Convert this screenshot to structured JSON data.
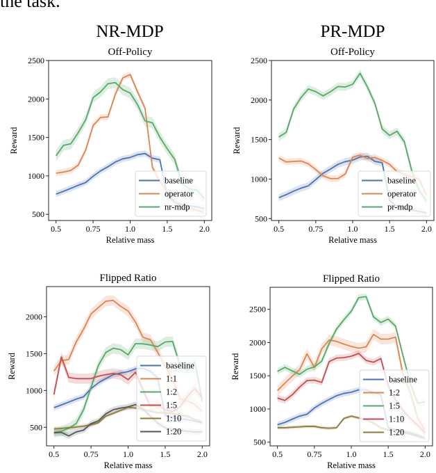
{
  "page": {
    "lead_text": "the task.",
    "column_titles": [
      "NR-MDP",
      "PR-MDP"
    ]
  },
  "colors": {
    "baseline": "#4c72b0",
    "orange": "#dd8452",
    "green": "#55a868",
    "red": "#c44e52",
    "olive": "#8c7a3a",
    "gray": "#555555"
  },
  "chart_data": [
    {
      "type": "line",
      "panel": "top-left",
      "column": "NR-MDP",
      "title": "Off-Policy",
      "xlabel": "Relative mass",
      "ylabel": "Reward",
      "x": [
        0.5,
        0.55,
        0.6,
        0.65,
        0.7,
        0.75,
        0.8,
        0.85,
        0.9,
        0.95,
        1.0,
        1.1,
        1.2,
        1.3,
        1.4,
        1.5,
        1.6,
        1.7,
        1.8,
        1.9,
        2.0
      ],
      "x_scale": "categorical-index",
      "xticks": [
        "0.5",
        "0.75",
        "1.0",
        "1.5",
        "2.0"
      ],
      "xtick_indices": [
        0,
        5,
        10,
        15,
        20
      ],
      "yticks": [
        500,
        1000,
        1500,
        2000,
        2500
      ],
      "ylim": [
        420,
        2500
      ],
      "legend_position": "lower-right",
      "series": [
        {
          "name": "baseline",
          "color_key": "baseline",
          "band": 40,
          "values": [
            763,
            799,
            838,
            878,
            914,
            995,
            1065,
            1119,
            1180,
            1222,
            1240,
            1276,
            1291,
            1231,
            1210,
            748,
            657,
            627,
            612,
            597,
            576
          ]
        },
        {
          "name": "operator",
          "color_key": "orange",
          "band": 40,
          "values": [
            1035,
            1050,
            1071,
            1140,
            1337,
            1654,
            1760,
            1766,
            2062,
            2273,
            2319,
            2092,
            1881,
            1110,
            929,
            793,
            657,
            597,
            582,
            551,
            521
          ]
        },
        {
          "name": "nr-mdp",
          "color_key": "green",
          "band": 70,
          "values": [
            1261,
            1397,
            1418,
            1563,
            1730,
            2017,
            2092,
            2198,
            2213,
            2122,
            2077,
            1926,
            1715,
            1690,
            1503,
            1352,
            1216,
            899,
            832,
            814,
            702
          ]
        }
      ]
    },
    {
      "type": "line",
      "panel": "top-right",
      "column": "PR-MDP",
      "title": "Off-Policy",
      "xlabel": "Relative mass",
      "ylabel": "Reward",
      "x": [
        0.5,
        0.55,
        0.6,
        0.65,
        0.7,
        0.75,
        0.8,
        0.85,
        0.9,
        0.95,
        1.0,
        1.1,
        1.2,
        1.3,
        1.4,
        1.5,
        1.6,
        1.7,
        1.8,
        1.9,
        2.0
      ],
      "x_scale": "categorical-index",
      "xticks": [
        "0.5",
        "0.75",
        "1.0",
        "1.5",
        "2.0"
      ],
      "xtick_indices": [
        0,
        5,
        10,
        15,
        20
      ],
      "yticks": [
        500,
        1000,
        1500,
        2000,
        2500
      ],
      "ylim": [
        476,
        2500
      ],
      "legend_position": "lower-right",
      "series": [
        {
          "name": "baseline",
          "color_key": "baseline",
          "band": 45,
          "values": [
            765,
            803,
            847,
            885,
            915,
            994,
            1074,
            1127,
            1186,
            1221,
            1239,
            1280,
            1289,
            1224,
            1206,
            729,
            655,
            626,
            611,
            590,
            572
          ]
        },
        {
          "name": "operator",
          "color_key": "orange",
          "band": 40,
          "values": [
            1267,
            1217,
            1223,
            1229,
            1193,
            1120,
            1041,
            1006,
            1006,
            1065,
            1277,
            1303,
            1259,
            1274,
            1236,
            1186,
            1097,
            1059,
            1029,
            1000,
            794
          ]
        },
        {
          "name": "pr-mdp",
          "color_key": "green",
          "band": 50,
          "values": [
            1532,
            1591,
            1885,
            2032,
            2140,
            2106,
            2053,
            2106,
            2171,
            2165,
            2200,
            2338,
            2165,
            1959,
            1634,
            1552,
            1605,
            1472,
            1104,
            854,
            721
          ]
        }
      ]
    },
    {
      "type": "line",
      "panel": "bottom-left",
      "column": "NR-MDP",
      "title": "Flipped Ratio",
      "xlabel": "Relative mass",
      "ylabel": "Reward",
      "x": [
        0.5,
        0.55,
        0.6,
        0.65,
        0.7,
        0.75,
        0.8,
        0.85,
        0.9,
        0.95,
        1.0,
        1.1,
        1.2,
        1.3,
        1.4,
        1.5,
        1.6,
        1.7,
        1.8,
        1.9,
        2.0
      ],
      "x_scale": "categorical-index",
      "xticks": [
        "0.5",
        "0.75",
        "1.0",
        "1.5",
        "2.0"
      ],
      "xtick_indices": [
        0,
        5,
        10,
        15,
        20
      ],
      "yticks": [
        500,
        1000,
        1500,
        2000
      ],
      "ylim": [
        248,
        2410
      ],
      "legend_position": "lower-right",
      "series": [
        {
          "name": "baseline",
          "color_key": "baseline",
          "band": 40,
          "values": [
            766,
            804,
            842,
            883,
            915,
            1025,
            1104,
            1161,
            1215,
            1237,
            1256,
            1294,
            1301,
            1263,
            1168,
            661,
            630,
            614,
            604,
            582,
            561
          ]
        },
        {
          "name": "1:1",
          "color_key": "orange",
          "band": 70,
          "values": [
            1263,
            1405,
            1421,
            1658,
            1832,
            2038,
            2127,
            2212,
            2222,
            2142,
            2079,
            1927,
            1722,
            1690,
            1516,
            1326,
            1155,
            887,
            856,
            809,
            714
          ]
        },
        {
          "name": "1:2",
          "color_key": "green",
          "band": 70,
          "values": [
            434,
            446,
            487,
            551,
            741,
            1041,
            1342,
            1516,
            1573,
            1554,
            1484,
            1636,
            1633,
            1617,
            1595,
            1658,
            1665,
            1344,
            1266,
            1392,
            856
          ]
        },
        {
          "name": "1:5",
          "color_key": "red",
          "band": 70,
          "values": [
            946,
            1453,
            1177,
            1161,
            1161,
            1161,
            1193,
            1215,
            1231,
            1215,
            1146,
            1247,
            1010,
            788,
            804,
            739,
            714,
            777,
            919,
            1026,
            899
          ]
        },
        {
          "name": "1:10",
          "color_key": "olive",
          "band": 25,
          "values": [
            478,
            484,
            494,
            503,
            516,
            535,
            563,
            651,
            689,
            730,
            771,
            761,
            739,
            720,
            698,
            698,
            689,
            667,
            651,
            604,
            572
          ]
        },
        {
          "name": "1:20",
          "color_key": "gray",
          "band": 40,
          "values": [
            424,
            431,
            383,
            437,
            462,
            550,
            588,
            683,
            739,
            761,
            777,
            809,
            746,
            651,
            557,
            494,
            468,
            456,
            446,
            437,
            437
          ]
        }
      ]
    },
    {
      "type": "line",
      "panel": "bottom-right",
      "column": "PR-MDP",
      "title": "Flipped Ratio",
      "xlabel": "Relative mass",
      "ylabel": "Reward",
      "x": [
        0.5,
        0.55,
        0.6,
        0.65,
        0.7,
        0.75,
        0.8,
        0.85,
        0.9,
        0.95,
        1.0,
        1.1,
        1.2,
        1.3,
        1.4,
        1.5,
        1.6,
        1.7,
        1.8,
        1.9,
        2.0
      ],
      "x_scale": "categorical-index",
      "xticks": [
        "0.5",
        "0.75",
        "1.0",
        "1.5",
        "2.0"
      ],
      "xtick_indices": [
        0,
        5,
        10,
        15,
        20
      ],
      "yticks": [
        500,
        1000,
        1500,
        2000,
        2500
      ],
      "ylim": [
        444,
        2832
      ],
      "legend_position": "lower-right",
      "series": [
        {
          "name": "baseline",
          "color_key": "baseline",
          "band": 45,
          "values": [
            762,
            797,
            846,
            892,
            920,
            1014,
            1084,
            1143,
            1199,
            1234,
            1252,
            1287,
            1287,
            1248,
            1213,
            717,
            682,
            647,
            619,
            587,
            559
          ]
        },
        {
          "name": "1:2",
          "color_key": "orange",
          "band": 80,
          "values": [
            1276,
            1388,
            1493,
            1591,
            1829,
            1626,
            1906,
            2038,
            2017,
            1976,
            1941,
            1916,
            1934,
            2122,
            2052,
            2052,
            2080,
            1521,
            1241,
            857,
            682
          ]
        },
        {
          "name": "1:5",
          "color_key": "green",
          "band": 50,
          "values": [
            1566,
            1626,
            1573,
            1521,
            1598,
            1633,
            1720,
            1986,
            2203,
            2343,
            2472,
            2675,
            2692,
            2388,
            2301,
            2353,
            2245,
            1801,
            1381,
            1084,
            1108
          ]
        },
        {
          "name": "1:10",
          "color_key": "red",
          "band": 50,
          "values": [
            1164,
            1129,
            1213,
            1329,
            1427,
            1434,
            1399,
            1713,
            1766,
            1773,
            1794,
            1836,
            1731,
            1703,
            1759,
            1346,
            1136,
            979,
            857,
            752,
            640
          ]
        },
        {
          "name": "1:20",
          "color_key": "olive",
          "band": 25,
          "values": [
            717,
            717,
            724,
            731,
            738,
            738,
            717,
            710,
            717,
            857,
            892,
            864,
            839,
            787,
            717,
            682,
            675,
            664,
            640,
            605,
            559
          ]
        }
      ]
    }
  ]
}
